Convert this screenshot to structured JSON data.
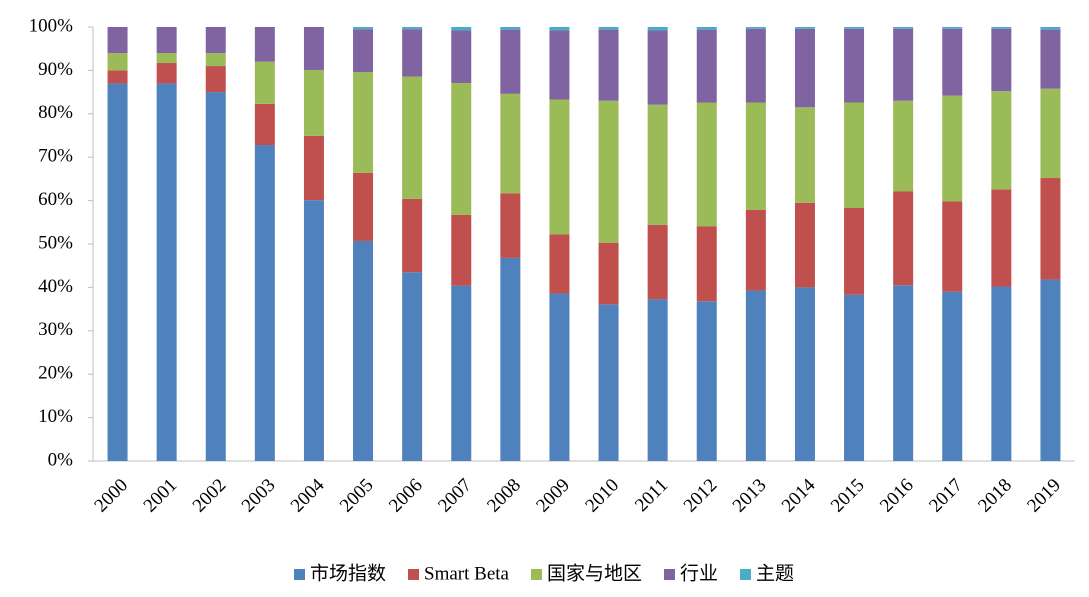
{
  "chart_data": {
    "type": "stacked_bar",
    "categories": [
      "2000",
      "2001",
      "2002",
      "2003",
      "2004",
      "2005",
      "2006",
      "2007",
      "2008",
      "2009",
      "2010",
      "2011",
      "2012",
      "2013",
      "2014",
      "2015",
      "2016",
      "2017",
      "2018",
      "2019"
    ],
    "series": [
      {
        "name": "市场指数",
        "color": "#4f81bd",
        "values": [
          87,
          87,
          85,
          72.8,
          60.1,
          50.7,
          43.5,
          40.4,
          46.8,
          38.6,
          36.1,
          37.3,
          36.8,
          39.3,
          40,
          38.3,
          40.5,
          39,
          40.2,
          41.8
        ]
      },
      {
        "name": "Smart Beta",
        "color": "#c0504d",
        "values": [
          3,
          4.7,
          6,
          9.5,
          14.8,
          15.7,
          16.9,
          16.3,
          14.9,
          13.6,
          14.2,
          17.1,
          17.3,
          18.6,
          19.5,
          20,
          21.6,
          20.8,
          22.4,
          23.4
        ]
      },
      {
        "name": "国家与地区",
        "color": "#9bbb59",
        "values": [
          4,
          2.3,
          3,
          9.7,
          15.2,
          23.2,
          28.2,
          30.4,
          22.9,
          31.1,
          32.7,
          27.7,
          28.5,
          24.7,
          22,
          24.3,
          20.9,
          24.4,
          22.6,
          20.6
        ]
      },
      {
        "name": "行业",
        "color": "#8064a2",
        "values": [
          6,
          6,
          6,
          8,
          9.9,
          9.9,
          10.9,
          12.1,
          14.8,
          15.9,
          16.4,
          17.1,
          16.8,
          17,
          18.1,
          17,
          16.6,
          15.4,
          14.4,
          13.6
        ]
      },
      {
        "name": "主题",
        "color": "#4bacc6",
        "values": [
          0,
          0,
          0,
          0,
          0,
          0.5,
          0.5,
          0.8,
          0.6,
          0.8,
          0.6,
          0.8,
          0.6,
          0.4,
          0.4,
          0.4,
          0.4,
          0.4,
          0.4,
          0.6
        ]
      }
    ],
    "ylim": [
      0,
      100
    ],
    "yticks": [
      {
        "value": 0,
        "label": "0%"
      },
      {
        "value": 10,
        "label": "10%"
      },
      {
        "value": 20,
        "label": "20%"
      },
      {
        "value": 30,
        "label": "30%"
      },
      {
        "value": 40,
        "label": "40%"
      },
      {
        "value": 50,
        "label": "50%"
      },
      {
        "value": 60,
        "label": "60%"
      },
      {
        "value": 70,
        "label": "70%"
      },
      {
        "value": 80,
        "label": "80%"
      },
      {
        "value": 90,
        "label": "90%"
      },
      {
        "value": 100,
        "label": "100%"
      }
    ],
    "legend": "bottom"
  }
}
